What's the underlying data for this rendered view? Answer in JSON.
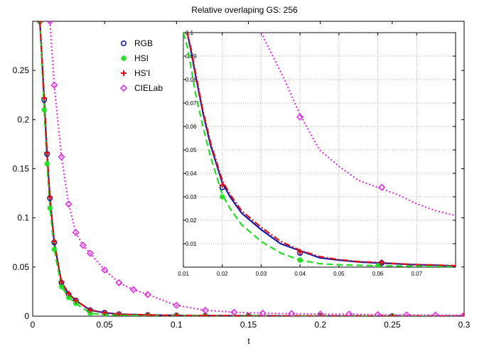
{
  "chart_data": [
    {
      "type": "line",
      "title": "Relative overlaping GS: 256",
      "xlabel": "t",
      "ylabel": "",
      "xlim": [
        0,
        0.3
      ],
      "ylim": [
        0,
        0.3
      ],
      "xticks": [
        0,
        0.05,
        0.1,
        0.15,
        0.2,
        0.25,
        0.3
      ],
      "xtick_labels": [
        "0",
        "0.05",
        "0.1",
        "0.15",
        "0.2",
        "0.25",
        "0.3"
      ],
      "yticks": [
        0,
        0.05,
        0.1,
        0.15,
        0.2,
        0.25
      ],
      "ytick_labels": [
        "0",
        "0.05",
        "0.1",
        "0.15",
        "0.2",
        "0.25"
      ],
      "grid": false,
      "legend_position": "top-left",
      "series": [
        {
          "name": "RGB",
          "color": "#1a1aa8",
          "line_style": "solid",
          "marker": "circle",
          "x": [
            0.005,
            0.008,
            0.01,
            0.012,
            0.015,
            0.02,
            0.025,
            0.03,
            0.04,
            0.05,
            0.06,
            0.08,
            0.1,
            0.12,
            0.15,
            0.2,
            0.25,
            0.3
          ],
          "y": [
            0.3,
            0.22,
            0.165,
            0.12,
            0.075,
            0.034,
            0.022,
            0.016,
            0.006,
            0.0035,
            0.002,
            0.0012,
            0.0008,
            0.0006,
            0.0004,
            0.0002,
            0.0001,
            0.0001
          ]
        },
        {
          "name": "HSI",
          "color": "#22dd22",
          "line_style": "dashed",
          "marker": "star",
          "x": [
            0.005,
            0.008,
            0.01,
            0.012,
            0.015,
            0.02,
            0.025,
            0.03,
            0.04,
            0.05,
            0.06,
            0.08,
            0.1,
            0.12,
            0.15,
            0.2,
            0.25,
            0.3
          ],
          "y": [
            0.3,
            0.21,
            0.155,
            0.11,
            0.068,
            0.03,
            0.019,
            0.013,
            0.003,
            0.0015,
            0.001,
            0.0006,
            0.0004,
            0.0003,
            0.0002,
            0.0001,
            0.0001,
            0.0001
          ]
        },
        {
          "name": "HS'I",
          "color": "#dd1111",
          "line_style": "dashdot",
          "marker": "plus",
          "x": [
            0.005,
            0.008,
            0.01,
            0.012,
            0.015,
            0.02,
            0.025,
            0.03,
            0.04,
            0.05,
            0.06,
            0.08,
            0.1,
            0.12,
            0.15,
            0.2,
            0.25,
            0.3
          ],
          "y": [
            0.3,
            0.222,
            0.166,
            0.121,
            0.076,
            0.035,
            0.023,
            0.016,
            0.0062,
            0.0036,
            0.002,
            0.0012,
            0.0008,
            0.0006,
            0.0004,
            0.0002,
            0.0001,
            0.0001
          ]
        },
        {
          "name": "CIELab",
          "color": "#dd33dd",
          "line_style": "dotted",
          "marker": "diamond",
          "x": [
            0.012,
            0.015,
            0.02,
            0.025,
            0.03,
            0.035,
            0.04,
            0.05,
            0.06,
            0.07,
            0.08,
            0.1,
            0.12,
            0.14,
            0.16,
            0.18,
            0.2,
            0.22,
            0.24,
            0.26,
            0.28,
            0.3
          ],
          "y": [
            0.3,
            0.235,
            0.162,
            0.114,
            0.085,
            0.072,
            0.064,
            0.047,
            0.034,
            0.027,
            0.022,
            0.011,
            0.006,
            0.004,
            0.003,
            0.0025,
            0.002,
            0.002,
            0.0015,
            0.0012,
            0.001,
            0.001
          ]
        }
      ]
    },
    {
      "type": "line",
      "title": "",
      "xlabel": "",
      "ylabel": "",
      "xlim": [
        0.01,
        0.08
      ],
      "ylim": [
        0,
        0.1
      ],
      "xticks": [
        0.01,
        0.02,
        0.03,
        0.04,
        0.05,
        0.06,
        0.07
      ],
      "xtick_labels": [
        "0.01",
        "0.02",
        "0.03",
        "0.04",
        "0.05",
        "0.06",
        "0.07"
      ],
      "yticks": [
        0.01,
        0.02,
        0.03,
        0.04,
        0.05,
        0.06,
        0.07,
        0.08,
        0.09,
        0.1
      ],
      "ytick_labels": [
        "0.01",
        "0.02",
        "0.03",
        "0.04",
        "0.05",
        "0.06",
        "0.07",
        "0.08",
        "0.09",
        "0.1"
      ],
      "grid": true,
      "series": [
        {
          "color": "#1a1aa8",
          "line_style": "solid",
          "x": [
            0.011,
            0.012,
            0.013,
            0.015,
            0.017,
            0.02,
            0.022,
            0.025,
            0.03,
            0.035,
            0.04,
            0.045,
            0.05,
            0.055,
            0.06,
            0.065,
            0.07,
            0.075,
            0.08
          ],
          "y": [
            0.1,
            0.092,
            0.083,
            0.066,
            0.052,
            0.036,
            0.03,
            0.023,
            0.016,
            0.01,
            0.007,
            0.004,
            0.003,
            0.0022,
            0.0018,
            0.0014,
            0.001,
            0.0008,
            0.0005
          ],
          "marker_x": [
            0.02,
            0.04,
            0.061
          ],
          "marker_y": [
            0.034,
            0.006,
            0.0018
          ]
        },
        {
          "color": "#22dd22",
          "line_style": "dashed",
          "x": [
            0.01,
            0.011,
            0.012,
            0.013,
            0.015,
            0.017,
            0.02,
            0.022,
            0.025,
            0.03,
            0.035,
            0.04,
            0.045,
            0.05,
            0.055,
            0.06,
            0.065,
            0.07,
            0.075,
            0.08
          ],
          "y": [
            0.1,
            0.094,
            0.085,
            0.075,
            0.06,
            0.047,
            0.031,
            0.025,
            0.018,
            0.011,
            0.006,
            0.003,
            0.0015,
            0.001,
            0.0008,
            0.0006,
            0.0005,
            0.0004,
            0.0003,
            0.0003
          ],
          "marker_x": [
            0.02,
            0.04,
            0.06
          ],
          "marker_y": [
            0.03,
            0.003,
            0.0006
          ]
        },
        {
          "color": "#dd1111",
          "line_style": "dashdot",
          "x": [
            0.011,
            0.012,
            0.013,
            0.015,
            0.017,
            0.02,
            0.022,
            0.025,
            0.03,
            0.035,
            0.04,
            0.045,
            0.05,
            0.055,
            0.06,
            0.065,
            0.07,
            0.075,
            0.08
          ],
          "y": [
            0.1,
            0.093,
            0.084,
            0.067,
            0.053,
            0.037,
            0.031,
            0.024,
            0.017,
            0.011,
            0.0072,
            0.0045,
            0.0032,
            0.0024,
            0.002,
            0.0015,
            0.0011,
            0.0009,
            0.0006
          ],
          "marker_x": [
            0.02,
            0.04,
            0.061
          ],
          "marker_y": [
            0.035,
            0.0065,
            0.002
          ]
        },
        {
          "color": "#dd33dd",
          "line_style": "dotted",
          "x": [
            0.03,
            0.033,
            0.036,
            0.04,
            0.045,
            0.05,
            0.055,
            0.06,
            0.065,
            0.07,
            0.075,
            0.08
          ],
          "y": [
            0.1,
            0.09,
            0.08,
            0.065,
            0.05,
            0.043,
            0.037,
            0.034,
            0.031,
            0.027,
            0.024,
            0.022
          ],
          "marker_x": [
            0.04,
            0.061
          ],
          "marker_y": [
            0.064,
            0.034
          ]
        }
      ]
    }
  ]
}
